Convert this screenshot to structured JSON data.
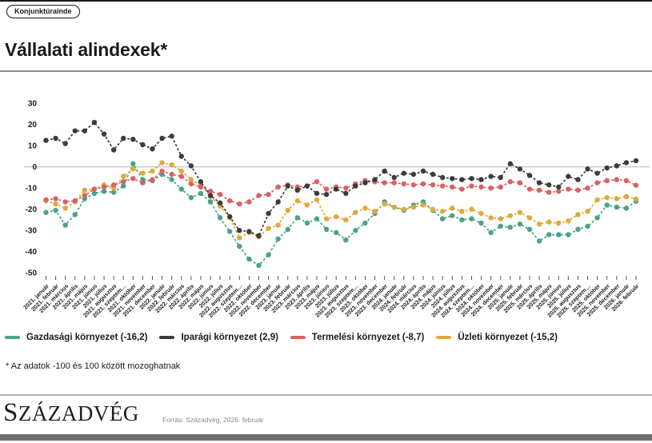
{
  "badge": "Konjunktúrainde",
  "title": "Vállalati alindexek*",
  "footnote": "* Az adatok -100 és 100 között mozoghatnak",
  "footer": {
    "logo": "SZÁZADVÉG",
    "source": "Forrás: Századvég, 2026. február"
  },
  "colors": {
    "gazdasagi": "#4AA38A",
    "iparagi": "#3C3C3C",
    "termelesi": "#D96262",
    "uzleti": "#E0A93C",
    "zero_grid": "#c9c9c9",
    "bottom_bar": "#6f6f6f"
  },
  "chart_data": {
    "type": "line",
    "title": "Vállalati alindexek*",
    "ylim": [
      -50,
      30
    ],
    "yticks": [
      30,
      20,
      10,
      0,
      -10,
      -20,
      -30,
      -40,
      -50
    ],
    "grid": "zero-line-only",
    "legend_position": "bottom",
    "marker": "circle",
    "line_style": "dashed",
    "categories": [
      "2021. január",
      "2021. február",
      "2021. március",
      "2021. április",
      "2021. május",
      "2021. június",
      "2021. július",
      "2021. augusztus",
      "2021. szeptem…",
      "2021. október",
      "2021. november",
      "2021. december",
      "2022. január",
      "2022. február",
      "2022. március",
      "2022. április",
      "2022. május",
      "2022. június",
      "2022. július",
      "2022. augusztus",
      "2022. szeptem…",
      "2022. október",
      "2022. november",
      "2022. december",
      "2023. január",
      "2023. február",
      "2023. március",
      "2023. április",
      "2023. május",
      "2023. június",
      "2023. július",
      "2023. augusztus",
      "2023. szeptem…",
      "2023. október",
      "2023. november",
      "2023. december",
      "2024. január",
      "2024. február",
      "2024. március",
      "2024. április",
      "2024. május",
      "2024. június",
      "2024. július",
      "2024. augusztus",
      "2024. szeptem…",
      "2024. október",
      "2024. november",
      "2024. december",
      "2025. január",
      "2025. február",
      "2025. március",
      "2025. április",
      "2025. május",
      "2025. június",
      "2025. július",
      "2025. augusztus",
      "2025. szeptem…",
      "2025. október",
      "2025. november",
      "2025. december",
      "2026. január",
      "2026. február"
    ],
    "series": [
      {
        "name": "Gazdasági környezet (-16,2)",
        "color": "#4AA38A",
        "values": [
          -21.5,
          -20.5,
          -27.5,
          -22.5,
          -15,
          -12.5,
          -11.5,
          -12,
          -9,
          1.5,
          -6,
          -6.5,
          -3.5,
          -6,
          -10.5,
          -14.5,
          -12.5,
          -16.5,
          -24,
          -30.5,
          -37.5,
          -43.5,
          -46.5,
          -41.5,
          -34,
          -29.5,
          -24,
          -26.5,
          -24.5,
          -29.5,
          -31,
          -34.5,
          -30,
          -26.5,
          -22,
          -16.5,
          -19,
          -20.5,
          -18,
          -16.5,
          -20.5,
          -24.5,
          -23,
          -25,
          -24.5,
          -26.5,
          -31,
          -28,
          -28.5,
          -27,
          -29.5,
          -35,
          -32,
          -32,
          -32,
          -29.5,
          -28,
          -24,
          -18,
          -19,
          -19.5,
          -16.2
        ]
      },
      {
        "name": "Iparági környezet (2,9)",
        "color": "#3C3C3C",
        "values": [
          12.5,
          13.5,
          11,
          17,
          17,
          21,
          15.5,
          8,
          13.5,
          13,
          10.5,
          8.5,
          13.5,
          14.5,
          5,
          0.5,
          -7,
          -13.5,
          -17,
          -23.5,
          -30,
          -30.5,
          -32.5,
          -22,
          -16.5,
          -9,
          -11,
          -9,
          -12.5,
          -13,
          -10.5,
          -12.5,
          -9,
          -7.5,
          -6,
          -2,
          -5,
          -3,
          -3.5,
          -2,
          -3.5,
          -5,
          -5.5,
          -6,
          -5.5,
          -6,
          -4.5,
          -5,
          1.5,
          -1,
          -4,
          -7.5,
          -8.5,
          -9.5,
          -4.5,
          -6,
          -1,
          -3,
          -0.5,
          0.5,
          2,
          2.9
        ]
      },
      {
        "name": "Termelési környezet (-8,7)",
        "color": "#D96262",
        "values": [
          -15.5,
          -15,
          -16.5,
          -16,
          -13.5,
          -10.5,
          -9.5,
          -8.5,
          -7,
          -5.5,
          -7.5,
          -6,
          -2,
          -3.5,
          -4.5,
          -8,
          -9.5,
          -11.5,
          -13,
          -16,
          -17.5,
          -16.5,
          -13.5,
          -13,
          -9.5,
          -8.5,
          -9.5,
          -9,
          -7,
          -10.5,
          -9.5,
          -10,
          -8,
          -6.5,
          -7,
          -7.5,
          -7.5,
          -8,
          -8.5,
          -8,
          -8.5,
          -9,
          -9.5,
          -10.5,
          -9,
          -9.5,
          -10,
          -9.5,
          -7,
          -7.5,
          -10.5,
          -11,
          -12,
          -11.5,
          -10.5,
          -11,
          -10,
          -7.5,
          -6.5,
          -6,
          -6.5,
          -8.7
        ]
      },
      {
        "name": "Üzleti környezet (-15,2)",
        "color": "#E0A93C",
        "values": [
          -16,
          -17.5,
          -19.5,
          -16.5,
          -11,
          -10.5,
          -8.5,
          -10,
          -4.5,
          -1,
          -3,
          -2,
          2,
          1,
          -2,
          -6,
          -8.5,
          -14,
          -18.5,
          -24,
          -33.5,
          -31,
          -33,
          -29,
          -27.5,
          -20.5,
          -16,
          -18,
          -15.5,
          -24.5,
          -23.5,
          -25,
          -21.5,
          -19.5,
          -21,
          -17.5,
          -19,
          -20,
          -19,
          -18,
          -20,
          -21,
          -19.5,
          -21,
          -20,
          -22,
          -24,
          -24.5,
          -23,
          -21.5,
          -24,
          -27,
          -26,
          -26.5,
          -25.5,
          -22.5,
          -21,
          -15.5,
          -14.5,
          -15,
          -14,
          -15.2
        ]
      }
    ]
  }
}
